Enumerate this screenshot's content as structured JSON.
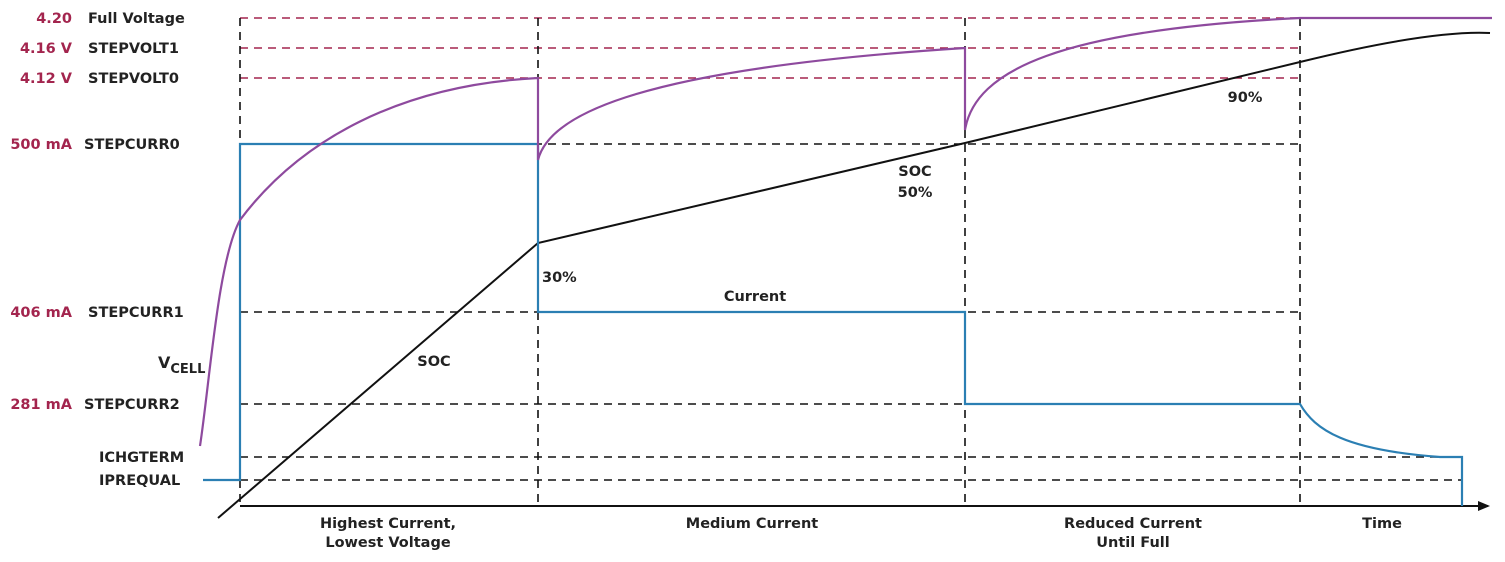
{
  "levels": {
    "full_voltage": {
      "value": "4.20",
      "name": "Full Voltage"
    },
    "stepvolt1": {
      "value": "4.16 V",
      "name": "STEPVOLT1"
    },
    "stepvolt0": {
      "value": "4.12 V",
      "name": "STEPVOLT0"
    },
    "stepcurr0": {
      "value": "500 mA",
      "name": "STEPCURR0"
    },
    "stepcurr1": {
      "value": "406 mA",
      "name": "STEPCURR1"
    },
    "stepcurr2": {
      "value": "281 mA",
      "name": "STEPCURR2"
    },
    "ichgterm": {
      "name": "ICHGTERM"
    },
    "iprequal": {
      "name": "IPREQUAL"
    }
  },
  "vcell": {
    "main": "V",
    "sub": "CELL"
  },
  "curve_labels": {
    "current": "Current",
    "soc": "SOC",
    "soc_mid": "SOC",
    "soc_mid_pct": "50%",
    "pct_30": "30%",
    "pct_90": "90%"
  },
  "phases": {
    "phase1_line1": "Highest Current,",
    "phase1_line2": "Lowest Voltage",
    "phase2": "Medium Current",
    "phase3_line1": "Reduced Current",
    "phase3_line2": "Until Full",
    "time": "Time"
  },
  "colors": {
    "voltage": "#8e4a9e",
    "current": "#2b7fb3",
    "soc": "#111111",
    "voltage_guides": "#a3254e",
    "level_labels": "#a3254e"
  }
}
